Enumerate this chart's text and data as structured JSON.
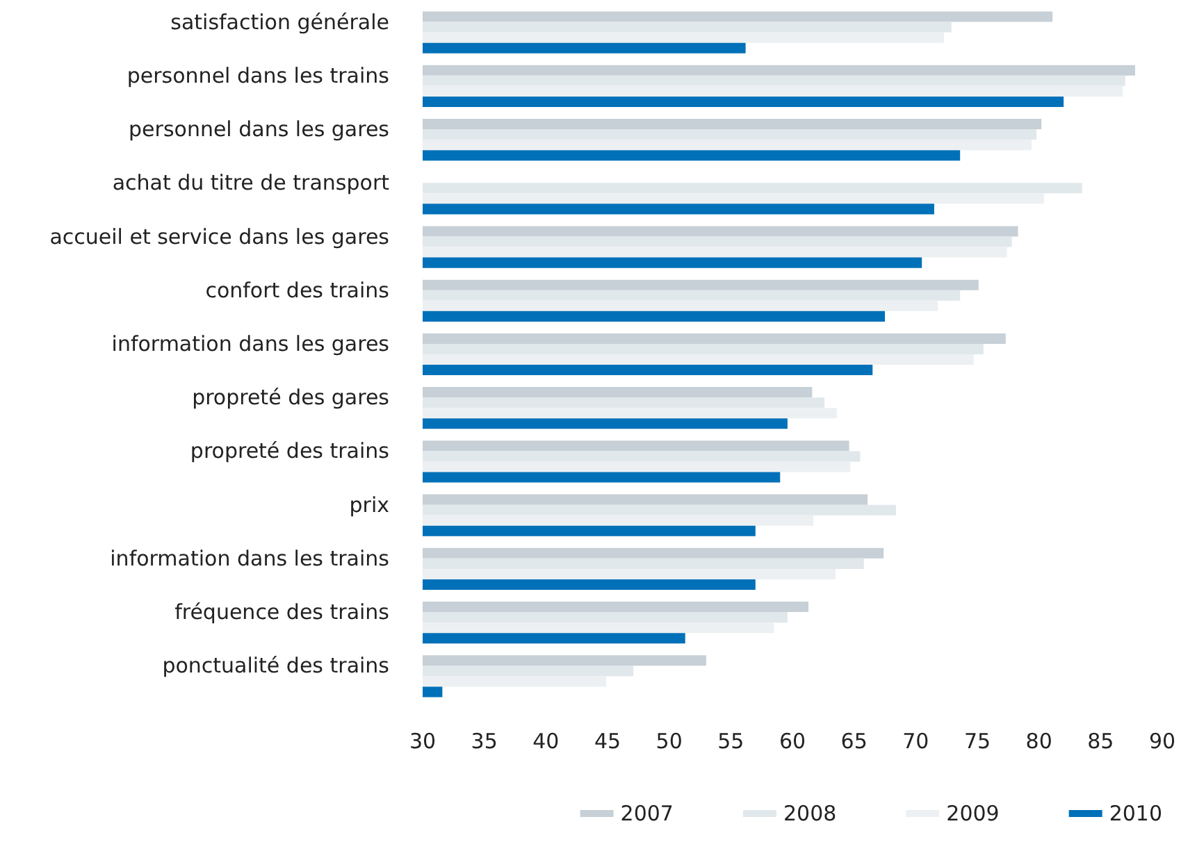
{
  "chart_data": {
    "type": "bar",
    "orientation": "horizontal",
    "categories": [
      "satisfaction générale",
      "personnel dans les trains",
      "personnel dans les gares",
      "achat du titre de transport",
      "accueil et service dans les gares",
      "confort des trains",
      "information dans les gares",
      "propreté des gares",
      "propreté des trains",
      "prix",
      "information dans les trains",
      "fréquence des trains",
      "ponctualité des trains"
    ],
    "series": [
      {
        "name": "2007",
        "color": "#c6d0d6",
        "values": [
          81.1,
          87.8,
          80.2,
          null,
          78.3,
          75.1,
          77.3,
          61.6,
          64.6,
          66.1,
          67.4,
          61.3,
          53.0
        ]
      },
      {
        "name": "2008",
        "color": "#e1e8ec",
        "values": [
          72.9,
          87.0,
          79.8,
          83.5,
          77.8,
          73.6,
          75.5,
          62.6,
          65.5,
          68.4,
          65.8,
          59.6,
          47.1
        ]
      },
      {
        "name": "2009",
        "color": "#ecf0f2",
        "values": [
          72.3,
          86.8,
          79.4,
          80.4,
          77.4,
          71.8,
          74.7,
          63.6,
          64.7,
          61.7,
          63.5,
          58.5,
          44.9
        ]
      },
      {
        "name": "2010",
        "color": "#0070b8",
        "values": [
          56.2,
          82.0,
          73.6,
          71.5,
          70.5,
          67.5,
          66.5,
          59.6,
          59.0,
          57.0,
          57.0,
          51.3,
          31.6
        ]
      }
    ],
    "xlim": [
      30,
      90
    ],
    "xticks": [
      30,
      35,
      40,
      45,
      50,
      55,
      60,
      65,
      70,
      75,
      80,
      85,
      90
    ],
    "grid": false,
    "legend": "bottom right"
  }
}
